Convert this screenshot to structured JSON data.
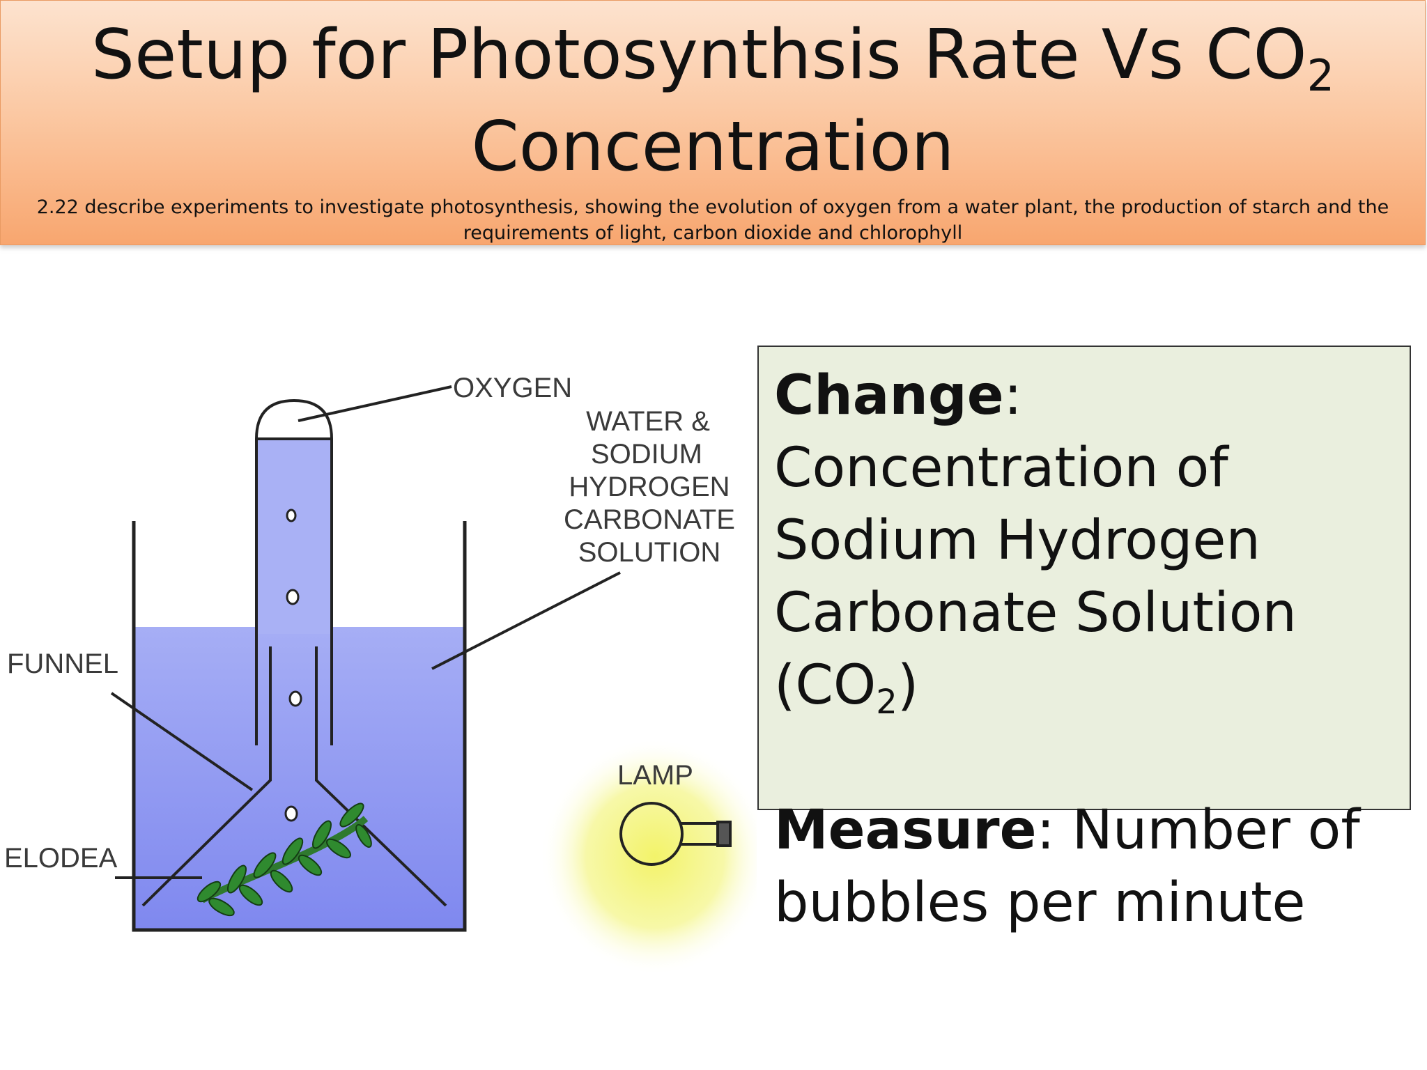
{
  "header": {
    "title_line1": "Setup for Photosynthsis Rate Vs CO",
    "title_sub": "2",
    "title_line2": "Concentration",
    "objective": "2.22 describe experiments to investigate photosynthesis, showing the evolution of oxygen from a water plant, the production of starch and the requirements of light, carbon dioxide and chlorophyll"
  },
  "diagram": {
    "labels": {
      "oxygen": "OXYGEN",
      "solution_line1": "WATER &",
      "solution_line2": "SODIUM",
      "solution_line3": "HYDROGEN",
      "solution_line4": "CARBONATE",
      "solution_line5": "SOLUTION",
      "funnel": "FUNNEL",
      "elodea": "ELODEA",
      "lamp": "LAMP"
    },
    "colors": {
      "water": "#8f97f2",
      "elodea": "#2f8a2f",
      "lamp_glow": "#f4f48a"
    }
  },
  "info": {
    "change_label": "Change",
    "change_text": ": Concentration of Sodium Hydrogen Carbonate Solution (CO",
    "change_sub": "2",
    "change_end": ")",
    "measure_label": "Measure",
    "measure_text": ": Number of bubbles per minute"
  }
}
